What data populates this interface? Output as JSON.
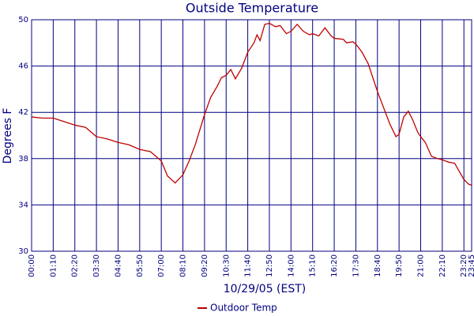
{
  "chart_data": {
    "type": "line",
    "title": "Outside Temperature",
    "y_label": "Degrees F",
    "x_label": "10/29/05 (EST)",
    "x": [
      "00:00",
      "00:35",
      "01:10",
      "01:45",
      "02:20",
      "02:55",
      "03:30",
      "04:05",
      "04:40",
      "05:15",
      "05:50",
      "06:25",
      "07:00",
      "07:20",
      "07:45",
      "08:10",
      "08:30",
      "08:50",
      "09:20",
      "09:40",
      "10:00",
      "10:15",
      "10:30",
      "10:45",
      "11:00",
      "11:20",
      "11:40",
      "12:00",
      "12:10",
      "12:20",
      "12:35",
      "12:50",
      "13:10",
      "13:25",
      "13:45",
      "14:00",
      "14:20",
      "14:40",
      "15:00",
      "15:10",
      "15:30",
      "15:50",
      "16:10",
      "16:20",
      "16:50",
      "17:00",
      "17:20",
      "17:30",
      "17:50",
      "18:10",
      "18:40",
      "19:00",
      "19:20",
      "19:40",
      "19:50",
      "20:05",
      "20:20",
      "20:35",
      "20:50",
      "21:00",
      "21:15",
      "21:35",
      "21:55",
      "22:10",
      "22:30",
      "22:50",
      "23:05",
      "23:20",
      "23:35",
      "23:45"
    ],
    "series": [
      {
        "name": "Outdoor Temp",
        "color": "#c00000",
        "values": [
          41.6,
          41.5,
          41.5,
          41.2,
          40.9,
          40.7,
          39.9,
          39.7,
          39.4,
          39.2,
          38.8,
          38.6,
          37.8,
          36.5,
          35.9,
          36.6,
          37.8,
          39.2,
          41.8,
          43.3,
          44.2,
          45.0,
          45.2,
          45.7,
          44.9,
          45.8,
          47.2,
          48.0,
          48.7,
          48.2,
          49.6,
          49.7,
          49.4,
          49.5,
          48.8,
          49.0,
          49.6,
          49.0,
          48.7,
          48.8,
          48.6,
          49.3,
          48.6,
          48.4,
          48.3,
          48.0,
          48.1,
          47.9,
          47.2,
          46.2,
          43.8,
          42.4,
          41.0,
          39.9,
          40.1,
          41.6,
          42.1,
          41.3,
          40.3,
          39.9,
          39.4,
          38.2,
          38.0,
          37.9,
          37.7,
          37.6,
          36.9,
          36.2,
          35.8,
          35.7
        ]
      }
    ],
    "xlim": [
      "00:00",
      "23:45"
    ],
    "xticks": [
      "00:00",
      "01:10",
      "02:20",
      "03:30",
      "04:40",
      "05:50",
      "07:00",
      "08:10",
      "09:20",
      "10:30",
      "11:40",
      "12:50",
      "14:00",
      "15:10",
      "16:20",
      "17:30",
      "18:40",
      "19:50",
      "21:00",
      "22:10",
      "23:20",
      "23:45"
    ],
    "ylim": [
      30,
      50
    ],
    "yticks": [
      30,
      34,
      38,
      42,
      46,
      50
    ],
    "grid": true
  }
}
